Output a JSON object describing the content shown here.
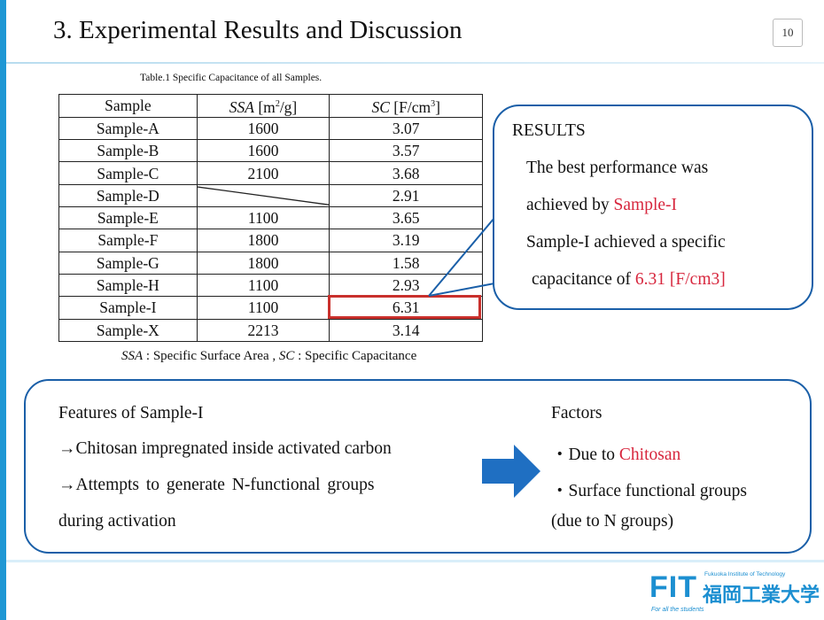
{
  "slide": {
    "title": "3. Experimental Results and Discussion",
    "page_number": "10",
    "accent_color": "#1f97d4",
    "highlight_color": "#d7263d"
  },
  "table": {
    "caption": "Table.1  Specific Capacitance of all Samples.",
    "headers": {
      "sample": "Sample",
      "ssa_abbr": "SSA",
      "ssa_unit": " [m",
      "ssa_unit_sup": "2",
      "ssa_unit_end": "/g]",
      "sc_abbr": "SC",
      "sc_unit": " [F/cm",
      "sc_unit_sup": "3",
      "sc_unit_end": "]"
    },
    "rows": [
      {
        "sample": "Sample-A",
        "ssa": "1600",
        "sc": "3.07"
      },
      {
        "sample": "Sample-B",
        "ssa": "1600",
        "sc": "3.57"
      },
      {
        "sample": "Sample-C",
        "ssa": "2100",
        "sc": "3.68"
      },
      {
        "sample": "Sample-D",
        "ssa": "",
        "sc": "2.91"
      },
      {
        "sample": "Sample-E",
        "ssa": "1100",
        "sc": "3.65"
      },
      {
        "sample": "Sample-F",
        "ssa": "1800",
        "sc": "3.19"
      },
      {
        "sample": "Sample-G",
        "ssa": "1800",
        "sc": "1.58"
      },
      {
        "sample": "Sample-H",
        "ssa": "1100",
        "sc": "2.93"
      },
      {
        "sample": "Sample-I",
        "ssa": "1100",
        "sc": "6.31"
      },
      {
        "sample": "Sample-X",
        "ssa": "2213",
        "sc": "3.14"
      }
    ],
    "note": {
      "ssa_abbr": "SSA",
      "ssa_text": " : Specific Surface Area , ",
      "sc_abbr": "SC",
      "sc_text": " : Specific Capacitance"
    }
  },
  "results": {
    "heading": "RESULTS",
    "line1": "The best performance was",
    "line2_prefix": "achieved by ",
    "line2_highlight": "Sample-I",
    "line3": "Sample-I achieved a specific",
    "line4_prefix": "capacitance of ",
    "line4_highlight": "6.31 [F/cm3]"
  },
  "features": {
    "heading": "Features of Sample-I",
    "point1": "→Chitosan impregnated inside activated carbon",
    "point2": "→Attempts  to  generate  N-functional  groups",
    "point2_cont": "during activation",
    "arrow_icon": "right-arrow-icon"
  },
  "factors": {
    "heading": "Factors",
    "item1_prefix": "・Due to ",
    "item1_highlight": "Chitosan",
    "item2": "・Surface functional groups",
    "item2_cont": "(due to N groups)"
  },
  "logo": {
    "abbr": "FIT",
    "name_jp": "福岡工業大学",
    "name_en": "Fukuoka Institute of Technology",
    "slogan": "For all the students"
  }
}
